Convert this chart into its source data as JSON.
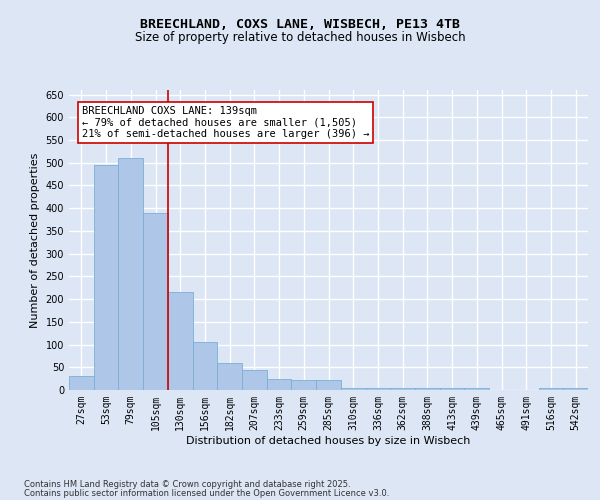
{
  "title_line1": "BREECHLAND, COXS LANE, WISBECH, PE13 4TB",
  "title_line2": "Size of property relative to detached houses in Wisbech",
  "xlabel": "Distribution of detached houses by size in Wisbech",
  "ylabel": "Number of detached properties",
  "categories": [
    "27sqm",
    "53sqm",
    "79sqm",
    "105sqm",
    "130sqm",
    "156sqm",
    "182sqm",
    "207sqm",
    "233sqm",
    "259sqm",
    "285sqm",
    "310sqm",
    "336sqm",
    "362sqm",
    "388sqm",
    "413sqm",
    "439sqm",
    "465sqm",
    "491sqm",
    "516sqm",
    "542sqm"
  ],
  "values": [
    30,
    495,
    510,
    390,
    215,
    105,
    60,
    45,
    25,
    22,
    22,
    5,
    5,
    5,
    5,
    5,
    5,
    0,
    0,
    5,
    5
  ],
  "bar_color": "#aec6e8",
  "bar_edge_color": "#7bafd4",
  "vline_x": 3.5,
  "vline_color": "#cc0000",
  "annotation_text": "BREECHLAND COXS LANE: 139sqm\n← 79% of detached houses are smaller (1,505)\n21% of semi-detached houses are larger (396) →",
  "annotation_box_color": "#ffffff",
  "annotation_box_edge_color": "#cc0000",
  "ylim": [
    0,
    660
  ],
  "yticks": [
    0,
    50,
    100,
    150,
    200,
    250,
    300,
    350,
    400,
    450,
    500,
    550,
    600,
    650
  ],
  "background_color": "#dce6f5",
  "grid_color": "#ffffff",
  "fig_background_color": "#dce6f5",
  "footer_line1": "Contains HM Land Registry data © Crown copyright and database right 2025.",
  "footer_line2": "Contains public sector information licensed under the Open Government Licence v3.0.",
  "title_fontsize": 9.5,
  "subtitle_fontsize": 8.5,
  "axis_label_fontsize": 8,
  "tick_fontsize": 7,
  "annotation_fontsize": 7.5,
  "footer_fontsize": 6
}
